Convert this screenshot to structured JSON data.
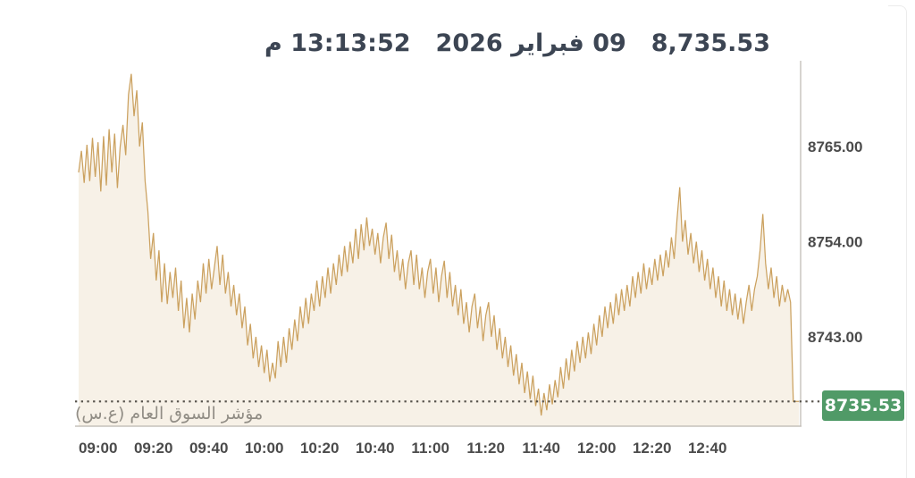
{
  "header": {
    "value": "8,735.53",
    "date": "09 فبراير 2026",
    "time": "13:13:52 م"
  },
  "chart": {
    "watermark": "مؤشر السوق العام (ع.س)",
    "last_price_label": "8735.53",
    "colors": {
      "line": "#cba15f",
      "fill": "#f7f1e7",
      "axis": "#c6c2bb",
      "tick_text": "#4b4b4b",
      "header_text": "#3c4553",
      "dotted": "#55514a",
      "badge_bg": "#509a67",
      "badge_text": "#ffffff",
      "watermark": "#918d85"
    }
  },
  "chart_data": {
    "type": "area",
    "title": "",
    "series_name": "مؤشر السوق العام (ع.س)",
    "x_start": "08:53",
    "x_end": "13:13",
    "step_minutes": 1,
    "x_tick_labels": [
      "09:00",
      "09:20",
      "09:40",
      "10:00",
      "10:20",
      "10:40",
      "11:00",
      "11:20",
      "11:40",
      "12:00",
      "12:20",
      "12:40"
    ],
    "y_ticks": [
      8765.0,
      8754.0,
      8743.0
    ],
    "y_range": [
      8732.5,
      8774.5
    ],
    "last_price": 8735.53,
    "day_high": 8773.4,
    "day_low": 8733.9,
    "legend": "none",
    "grid": "off",
    "values": [
      8762.0,
      8764.5,
      8760.8,
      8765.2,
      8761.0,
      8766.0,
      8761.5,
      8765.5,
      8759.8,
      8766.2,
      8760.5,
      8767.0,
      8762.0,
      8766.5,
      8760.2,
      8765.0,
      8767.5,
      8764.0,
      8771.0,
      8773.4,
      8768.5,
      8771.5,
      8765.0,
      8767.8,
      8761.0,
      8757.5,
      8752.0,
      8755.0,
      8749.5,
      8753.0,
      8747.0,
      8751.5,
      8746.8,
      8750.5,
      8747.5,
      8751.0,
      8746.0,
      8749.5,
      8744.0,
      8747.5,
      8743.5,
      8748.0,
      8745.0,
      8749.5,
      8747.0,
      8751.5,
      8748.0,
      8752.0,
      8748.5,
      8751.0,
      8753.5,
      8749.0,
      8752.5,
      8748.0,
      8750.5,
      8746.5,
      8749.0,
      8745.5,
      8748.0,
      8744.0,
      8746.5,
      8742.0,
      8744.5,
      8740.5,
      8743.0,
      8739.5,
      8742.0,
      8738.8,
      8741.5,
      8737.8,
      8740.0,
      8738.2,
      8742.5,
      8739.5,
      8743.0,
      8740.0,
      8744.0,
      8741.5,
      8745.0,
      8742.5,
      8746.5,
      8744.0,
      8747.5,
      8744.5,
      8748.0,
      8746.0,
      8749.5,
      8746.5,
      8750.0,
      8747.5,
      8751.0,
      8748.0,
      8751.5,
      8749.0,
      8752.5,
      8750.0,
      8753.5,
      8750.5,
      8754.0,
      8751.5,
      8755.5,
      8752.0,
      8756.0,
      8753.0,
      8756.8,
      8753.5,
      8755.5,
      8752.5,
      8755.0,
      8751.5,
      8754.5,
      8756.2,
      8752.0,
      8754.8,
      8750.5,
      8753.0,
      8749.5,
      8752.0,
      8748.5,
      8751.5,
      8753.0,
      8749.0,
      8752.5,
      8748.5,
      8751.0,
      8747.5,
      8750.5,
      8752.0,
      8748.0,
      8751.0,
      8747.0,
      8750.0,
      8751.8,
      8747.5,
      8750.5,
      8746.5,
      8749.0,
      8745.5,
      8748.5,
      8744.5,
      8747.0,
      8743.5,
      8746.5,
      8748.0,
      8744.0,
      8746.5,
      8742.5,
      8745.5,
      8747.0,
      8743.0,
      8745.5,
      8741.5,
      8744.0,
      8740.5,
      8743.0,
      8739.5,
      8742.0,
      8738.5,
      8741.0,
      8737.5,
      8740.0,
      8736.5,
      8739.0,
      8735.8,
      8738.5,
      8735.0,
      8737.0,
      8733.9,
      8736.5,
      8734.5,
      8737.5,
      8735.2,
      8738.0,
      8736.0,
      8739.5,
      8737.0,
      8740.5,
      8738.0,
      8741.5,
      8739.0,
      8742.5,
      8740.0,
      8743.0,
      8740.5,
      8743.5,
      8741.0,
      8744.5,
      8742.0,
      8745.5,
      8743.0,
      8746.5,
      8744.0,
      8747.0,
      8744.5,
      8748.0,
      8745.5,
      8748.5,
      8746.0,
      8749.0,
      8746.5,
      8750.0,
      8747.5,
      8750.5,
      8748.0,
      8751.5,
      8748.5,
      8751.0,
      8749.0,
      8752.0,
      8749.5,
      8752.5,
      8750.0,
      8753.0,
      8751.0,
      8754.5,
      8752.0,
      8756.5,
      8760.3,
      8754.0,
      8756.5,
      8752.5,
      8755.0,
      8751.5,
      8754.0,
      8750.5,
      8753.0,
      8749.5,
      8752.0,
      8748.5,
      8751.0,
      8747.5,
      8750.0,
      8746.5,
      8749.5,
      8746.0,
      8748.5,
      8745.5,
      8748.0,
      8745.0,
      8747.5,
      8744.5,
      8747.0,
      8749.0,
      8746.0,
      8748.5,
      8750.0,
      8753.0,
      8757.2,
      8751.5,
      8748.5,
      8751.0,
      8747.5,
      8750.0,
      8746.5,
      8749.0,
      8747.0,
      8748.5,
      8747.0,
      8735.53,
      8735.53,
      8735.53
    ]
  }
}
